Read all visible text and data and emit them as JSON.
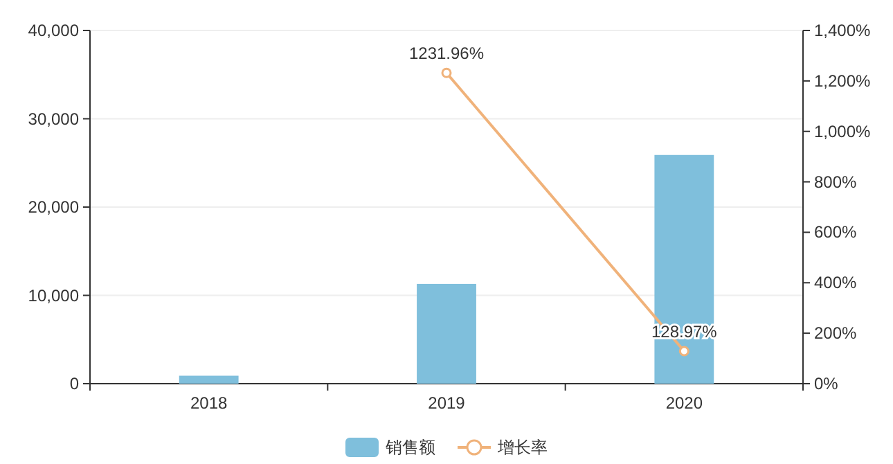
{
  "chart_data": {
    "type": "bar",
    "categories": [
      "2018",
      "2019",
      "2020"
    ],
    "series": [
      {
        "name": "销售额",
        "color": "#7fbfdc",
        "values": [
          900,
          11300,
          25900
        ]
      },
      {
        "name": "增长率",
        "type": "line",
        "axis": "y2",
        "color": "#f0b27a",
        "marker": "circle",
        "values": [
          null,
          1231.96,
          128.97
        ],
        "value_labels": [
          null,
          "1231.96%",
          "128.97%"
        ]
      }
    ],
    "ylim": [
      0,
      40000
    ],
    "yticks": [
      {
        "value": 0,
        "label": "0"
      },
      {
        "value": 10000,
        "label": "10,000"
      },
      {
        "value": 20000,
        "label": "20,000"
      },
      {
        "value": 30000,
        "label": "30,000"
      },
      {
        "value": 40000,
        "label": "40,000"
      }
    ],
    "y2lim": [
      0,
      1400
    ],
    "y2ticks": [
      {
        "value": 0,
        "label": "0%"
      },
      {
        "value": 200,
        "label": "200%"
      },
      {
        "value": 400,
        "label": "400%"
      },
      {
        "value": 600,
        "label": "600%"
      },
      {
        "value": 800,
        "label": "800%"
      },
      {
        "value": 1000,
        "label": "1,000%"
      },
      {
        "value": 1200,
        "label": "1,200%"
      },
      {
        "value": 1400,
        "label": "1,400%"
      }
    ],
    "grid": "y",
    "legend": "bottom"
  }
}
